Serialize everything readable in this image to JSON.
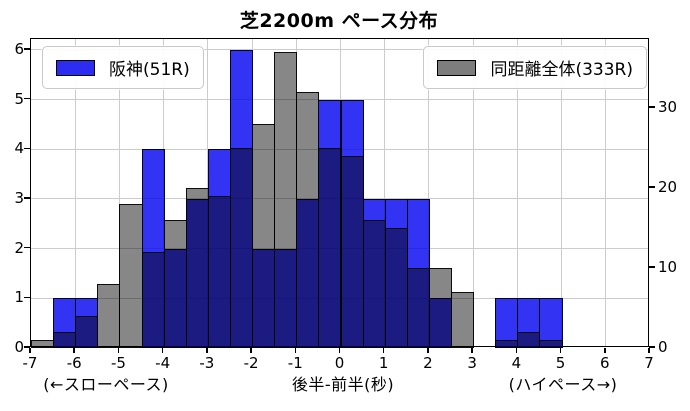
{
  "title": "芝2200m ペース分布",
  "legend": {
    "hanshin_label": "阪神(51R)",
    "all_label": "同距離全体(333R)",
    "hanshin_color": "#2d2df1",
    "all_color": "#7d7d7d"
  },
  "axis_notes": {
    "left": "(←スローペース)",
    "center": "後半-前半(秒)",
    "right": "(ハイペース→)"
  },
  "chart_data": {
    "type": "bar",
    "subtype": "overlaid-histogram",
    "title": "芝2200m ペース分布",
    "xlabel": "後半-前半(秒)",
    "xlabel_left_note": "(←スローペース)",
    "xlabel_right_note": "(ハイペース→)",
    "grid": true,
    "x_range": [
      -7,
      7
    ],
    "bin_width": 0.5,
    "bin_start": -7,
    "x_ticks": [
      -7,
      -6,
      -5,
      -4,
      -3,
      -2,
      -1,
      0,
      1,
      2,
      3,
      4,
      5,
      6,
      7
    ],
    "x_tick_labels": [
      "-7",
      "-6",
      "-5",
      "-4",
      "-3",
      "-2",
      "-1",
      "0",
      "1",
      "2",
      "3",
      "4",
      "5",
      "6",
      "7"
    ],
    "y_left": {
      "label": "",
      "ticks": [
        0,
        1,
        2,
        3,
        4,
        5,
        6
      ],
      "tick_labels": [
        "0",
        "1",
        "2",
        "3",
        "4",
        "5",
        "6"
      ],
      "max": 6.22
    },
    "y_right": {
      "label": "",
      "ticks": [
        0,
        10,
        20,
        30
      ],
      "tick_labels": [
        "0",
        "10",
        "20",
        "30"
      ],
      "max": 38.6
    },
    "series": [
      {
        "name": "阪神(51R)",
        "axis": "left",
        "color_css": "rgba(0,0,240,0.8)",
        "legend_position": "upper-left",
        "values": [
          0,
          1,
          1,
          0,
          0,
          4,
          2,
          3,
          4,
          6,
          2,
          2,
          3,
          5,
          5,
          3,
          3,
          3,
          1,
          0,
          0,
          1,
          1,
          1,
          0,
          0,
          0,
          0
        ],
        "total": 51
      },
      {
        "name": "同距離全体(333R)",
        "axis": "right",
        "color_css": "rgba(0,0,0,0.47)",
        "legend_position": "upper-right",
        "values": [
          1,
          2,
          4,
          8,
          18,
          12,
          16,
          20,
          19,
          25,
          28,
          37,
          32,
          25,
          24,
          16,
          15,
          10,
          10,
          7,
          0,
          1,
          2,
          1,
          0,
          0,
          0,
          0
        ],
        "total": 333
      }
    ]
  }
}
